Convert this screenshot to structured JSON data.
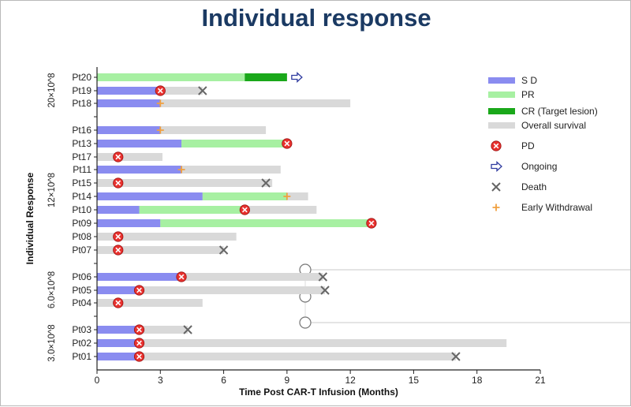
{
  "chart_data": {
    "type": "bar",
    "title": "Individual response",
    "xlabel": "Time Post CAR-T Infusion (Months)",
    "ylabel": "Individual Response",
    "xlim": [
      0,
      21
    ],
    "xticks": [
      "0",
      "3",
      "6",
      "9",
      "12",
      "15",
      "18",
      "21"
    ],
    "colors": {
      "SD": "#8a8cf0",
      "PR": "#a7f0a2",
      "CR": "#1aa81a",
      "OS": "#d9d9d9",
      "PD": "#e8312e",
      "death": "#666666",
      "withdrawal": "#f0a040",
      "ongoing": "#2e3a9f"
    },
    "legend": [
      {
        "key": "SD",
        "label": "S D",
        "kind": "bar"
      },
      {
        "key": "PR",
        "label": "PR",
        "kind": "bar"
      },
      {
        "key": "CR",
        "label": "CR (Target lesion)",
        "kind": "bar"
      },
      {
        "key": "OS",
        "label": "Overall survival",
        "kind": "bar"
      },
      {
        "key": "PD",
        "label": "PD",
        "kind": "pd"
      },
      {
        "key": "ongoing",
        "label": "Ongoing",
        "kind": "ongoing"
      },
      {
        "key": "death",
        "label": "Death",
        "kind": "death"
      },
      {
        "key": "withdrawal",
        "label": "Early Withdrawal",
        "kind": "withdrawal"
      }
    ],
    "groups": [
      {
        "label": "20×10^8",
        "patients": [
          {
            "id": "Pt20",
            "os": 9.0,
            "segments": [
              {
                "type": "PR",
                "from": 0,
                "to": 7.0
              },
              {
                "type": "CR",
                "from": 7.0,
                "to": 9.0
              }
            ],
            "ongoing": true
          },
          {
            "id": "Pt19",
            "os": 5.0,
            "segments": [
              {
                "type": "SD",
                "from": 0,
                "to": 3.0
              }
            ],
            "pd": 3.0,
            "death": 5.0
          },
          {
            "id": "Pt18",
            "os": 12.0,
            "segments": [
              {
                "type": "SD",
                "from": 0,
                "to": 3.0
              }
            ],
            "withdrawal": 3.0
          }
        ]
      },
      {
        "label": "12×10^8",
        "patients": [
          {
            "id": "Pt16",
            "os": 8.0,
            "segments": [
              {
                "type": "SD",
                "from": 0,
                "to": 3.0
              }
            ],
            "withdrawal": 3.0
          },
          {
            "id": "Pt13",
            "os": 9.0,
            "segments": [
              {
                "type": "SD",
                "from": 0,
                "to": 4.0
              },
              {
                "type": "PR",
                "from": 4.0,
                "to": 9.0
              }
            ],
            "pd": 9.0
          },
          {
            "id": "Pt17",
            "os": 3.1,
            "segments": [],
            "pd": 1.0
          },
          {
            "id": "Pt11",
            "os": 8.7,
            "segments": [
              {
                "type": "SD",
                "from": 0,
                "to": 4.0
              }
            ],
            "withdrawal": 4.0
          },
          {
            "id": "Pt15",
            "os": 8.3,
            "segments": [],
            "pd": 1.0,
            "death": 8.0
          },
          {
            "id": "Pt14",
            "os": 10.0,
            "segments": [
              {
                "type": "SD",
                "from": 0,
                "to": 5.0
              },
              {
                "type": "PR",
                "from": 5.0,
                "to": 9.0
              }
            ],
            "withdrawal": 9.0
          },
          {
            "id": "Pt10",
            "os": 10.4,
            "segments": [
              {
                "type": "SD",
                "from": 0,
                "to": 2.0
              },
              {
                "type": "PR",
                "from": 2.0,
                "to": 7.0
              }
            ],
            "pd": 7.0
          },
          {
            "id": "Pt09",
            "os": 13.0,
            "segments": [
              {
                "type": "SD",
                "from": 0,
                "to": 3.0
              },
              {
                "type": "PR",
                "from": 3.0,
                "to": 13.0
              }
            ],
            "pd": 13.0
          },
          {
            "id": "Pt08",
            "os": 6.6,
            "segments": [],
            "pd": 1.0
          },
          {
            "id": "Pt07",
            "os": 6.0,
            "segments": [],
            "pd": 1.0,
            "death": 6.0
          }
        ]
      },
      {
        "label": "6.0×10^8",
        "patients": [
          {
            "id": "Pt06",
            "os": 10.7,
            "segments": [
              {
                "type": "SD",
                "from": 0,
                "to": 4.0
              }
            ],
            "pd": 4.0,
            "death": 10.7
          },
          {
            "id": "Pt05",
            "os": 10.8,
            "segments": [
              {
                "type": "SD",
                "from": 0,
                "to": 2.0
              }
            ],
            "pd": 2.0,
            "death": 10.8
          },
          {
            "id": "Pt04",
            "os": 5.0,
            "segments": [],
            "pd": 1.0
          }
        ]
      },
      {
        "label": "3.0×10^8",
        "patients": [
          {
            "id": "Pt03",
            "os": 4.3,
            "segments": [
              {
                "type": "SD",
                "from": 0,
                "to": 2.0
              }
            ],
            "pd": 2.0,
            "death": 4.3
          },
          {
            "id": "Pt02",
            "os": 19.4,
            "segments": [
              {
                "type": "SD",
                "from": 0,
                "to": 2.0
              }
            ],
            "pd": 2.0
          },
          {
            "id": "Pt01",
            "os": 17.0,
            "segments": [
              {
                "type": "SD",
                "from": 0,
                "to": 2.0
              }
            ],
            "pd": 2.0,
            "death": 17.0
          }
        ]
      }
    ]
  }
}
